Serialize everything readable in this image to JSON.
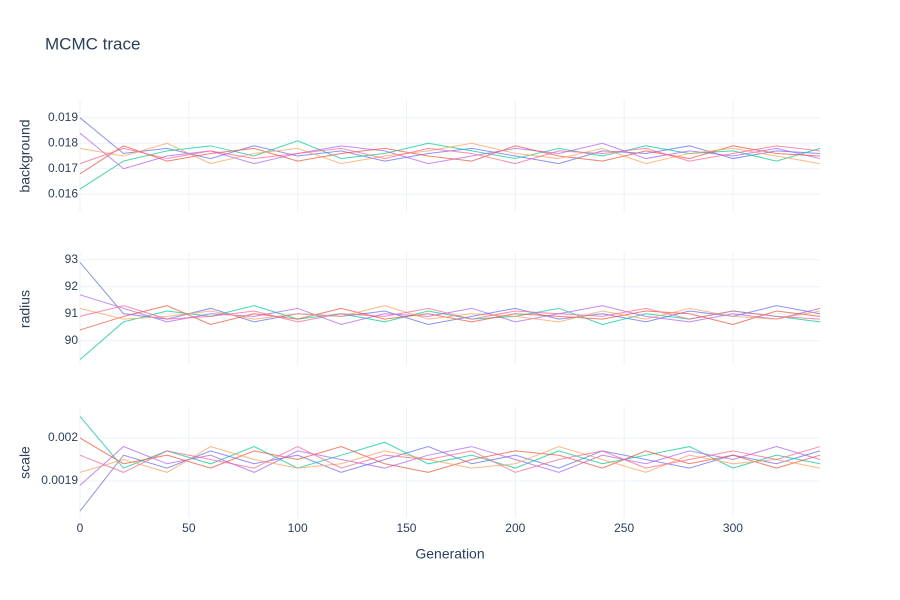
{
  "chart_data": [
    {
      "type": "line",
      "title": "MCMC trace",
      "y_label": "background",
      "x": [
        0,
        20,
        40,
        60,
        80,
        100,
        120,
        140,
        160,
        180,
        200,
        220,
        240,
        260,
        280,
        300,
        320,
        340
      ],
      "xlim": [
        0,
        340
      ],
      "ylim": [
        0.0153,
        0.0197
      ],
      "yticks": [
        0.016,
        0.017,
        0.018,
        0.019
      ],
      "grid": true,
      "series": [
        {
          "color": "#636efa",
          "values": [
            0.019,
            0.0176,
            0.0178,
            0.0174,
            0.0179,
            0.0175,
            0.0177,
            0.0173,
            0.0176,
            0.0178,
            0.0175,
            0.0172,
            0.0177,
            0.0176,
            0.0179,
            0.0174,
            0.0177,
            0.0176
          ]
        },
        {
          "color": "#00cc96",
          "values": [
            0.0162,
            0.0173,
            0.0177,
            0.0179,
            0.0175,
            0.0181,
            0.0174,
            0.0176,
            0.018,
            0.0177,
            0.0174,
            0.0178,
            0.0175,
            0.0179,
            0.0176,
            0.0177,
            0.0173,
            0.0178
          ]
        },
        {
          "color": "#ab63fa",
          "values": [
            0.0184,
            0.017,
            0.0175,
            0.0177,
            0.0172,
            0.0176,
            0.0179,
            0.0177,
            0.0172,
            0.0175,
            0.0178,
            0.0176,
            0.018,
            0.0174,
            0.0177,
            0.0175,
            0.0178,
            0.0174
          ]
        },
        {
          "color": "#EF553B",
          "values": [
            0.0168,
            0.0179,
            0.0173,
            0.0176,
            0.0178,
            0.0173,
            0.0176,
            0.0178,
            0.0175,
            0.0173,
            0.0179,
            0.0175,
            0.0173,
            0.0177,
            0.0174,
            0.0179,
            0.0176,
            0.0175
          ]
        },
        {
          "color": "#FFA15A",
          "values": [
            0.0178,
            0.0175,
            0.018,
            0.0172,
            0.0176,
            0.0178,
            0.0172,
            0.0175,
            0.0177,
            0.018,
            0.0176,
            0.0174,
            0.0178,
            0.0172,
            0.0176,
            0.0178,
            0.0175,
            0.0172
          ]
        },
        {
          "color": "#FF6692",
          "values": [
            0.0172,
            0.0178,
            0.0174,
            0.0177,
            0.0174,
            0.0176,
            0.0178,
            0.0174,
            0.0178,
            0.0176,
            0.0172,
            0.0177,
            0.0176,
            0.0178,
            0.0173,
            0.0176,
            0.0179,
            0.0177
          ]
        }
      ]
    },
    {
      "type": "line",
      "y_label": "radius",
      "x": [
        0,
        20,
        40,
        60,
        80,
        100,
        120,
        140,
        160,
        180,
        200,
        220,
        240,
        260,
        280,
        300,
        320,
        340
      ],
      "xlim": [
        0,
        340
      ],
      "ylim": [
        89.1,
        93.25
      ],
      "yticks": [
        90,
        91,
        92,
        93
      ],
      "grid": true,
      "series": [
        {
          "color": "#636efa",
          "values": [
            92.9,
            91.0,
            90.8,
            91.2,
            90.7,
            91.0,
            90.9,
            91.1,
            90.6,
            90.9,
            91.2,
            90.8,
            91.0,
            90.7,
            91.1,
            90.9,
            91.3,
            91.0
          ]
        },
        {
          "color": "#00cc96",
          "values": [
            89.3,
            90.7,
            91.1,
            90.9,
            91.3,
            90.8,
            91.0,
            90.7,
            91.1,
            90.8,
            90.9,
            91.2,
            90.6,
            91.0,
            90.8,
            91.1,
            90.9,
            90.7
          ]
        },
        {
          "color": "#ab63fa",
          "values": [
            91.7,
            91.2,
            90.7,
            91.0,
            90.9,
            91.2,
            90.6,
            91.0,
            90.9,
            91.2,
            90.7,
            91.0,
            91.3,
            90.9,
            90.7,
            91.0,
            90.8,
            91.2
          ]
        },
        {
          "color": "#EF553B",
          "values": [
            90.4,
            90.9,
            91.3,
            90.6,
            91.0,
            90.8,
            91.2,
            90.8,
            91.0,
            90.7,
            91.0,
            90.9,
            90.8,
            91.1,
            91.0,
            90.6,
            91.1,
            90.9
          ]
        },
        {
          "color": "#FFA15A",
          "values": [
            91.2,
            90.8,
            90.9,
            91.1,
            90.8,
            91.0,
            90.9,
            91.3,
            90.8,
            91.0,
            90.9,
            90.7,
            91.1,
            90.8,
            91.2,
            90.9,
            90.8,
            91.1
          ]
        },
        {
          "color": "#FF6692",
          "values": [
            90.9,
            91.3,
            90.8,
            90.9,
            91.1,
            90.7,
            91.0,
            90.9,
            91.2,
            90.8,
            91.1,
            91.0,
            90.9,
            91.2,
            90.8,
            91.1,
            90.9,
            90.8
          ]
        }
      ]
    },
    {
      "type": "line",
      "y_label": "scale",
      "x_label": "Generation",
      "x": [
        0,
        20,
        40,
        60,
        80,
        100,
        120,
        140,
        160,
        180,
        200,
        220,
        240,
        260,
        280,
        300,
        320,
        340
      ],
      "xlim": [
        0,
        340
      ],
      "xticks": [
        0,
        50,
        100,
        150,
        200,
        250,
        300
      ],
      "ylim": [
        0.001814,
        0.002072
      ],
      "yticks": [
        0.0019,
        0.002
      ],
      "grid": true,
      "series": [
        {
          "color": "#636efa",
          "values": [
            0.00183,
            0.00196,
            0.00193,
            0.00197,
            0.00194,
            0.00196,
            0.00192,
            0.00195,
            0.00198,
            0.00194,
            0.00196,
            0.00193,
            0.00197,
            0.00195,
            0.00193,
            0.00196,
            0.00194,
            0.00197
          ]
        },
        {
          "color": "#00cc96",
          "values": [
            0.00205,
            0.00193,
            0.00197,
            0.00194,
            0.00198,
            0.00193,
            0.00196,
            0.00199,
            0.00194,
            0.00196,
            0.00193,
            0.00197,
            0.00194,
            0.00196,
            0.00198,
            0.00193,
            0.00196,
            0.00194
          ]
        },
        {
          "color": "#ab63fa",
          "values": [
            0.00189,
            0.00198,
            0.00194,
            0.00196,
            0.00192,
            0.00197,
            0.00195,
            0.00193,
            0.00196,
            0.00198,
            0.00195,
            0.00192,
            0.00196,
            0.00194,
            0.00197,
            0.00195,
            0.00198,
            0.00195
          ]
        },
        {
          "color": "#EF553B",
          "values": [
            0.002,
            0.00194,
            0.00196,
            0.00193,
            0.00197,
            0.00195,
            0.00198,
            0.00194,
            0.00192,
            0.00195,
            0.00197,
            0.00196,
            0.00193,
            0.00197,
            0.00194,
            0.00196,
            0.00193,
            0.00196
          ]
        },
        {
          "color": "#FFA15A",
          "values": [
            0.00192,
            0.00195,
            0.00192,
            0.00198,
            0.00195,
            0.00193,
            0.00194,
            0.00197,
            0.00195,
            0.00193,
            0.00194,
            0.00198,
            0.00195,
            0.00192,
            0.00196,
            0.00194,
            0.00195,
            0.00193
          ]
        },
        {
          "color": "#FF6692",
          "values": [
            0.00196,
            0.00192,
            0.00197,
            0.00195,
            0.00193,
            0.00198,
            0.00193,
            0.00196,
            0.00195,
            0.00197,
            0.00192,
            0.00195,
            0.00197,
            0.00193,
            0.00195,
            0.00197,
            0.00195,
            0.00198
          ]
        }
      ]
    }
  ]
}
